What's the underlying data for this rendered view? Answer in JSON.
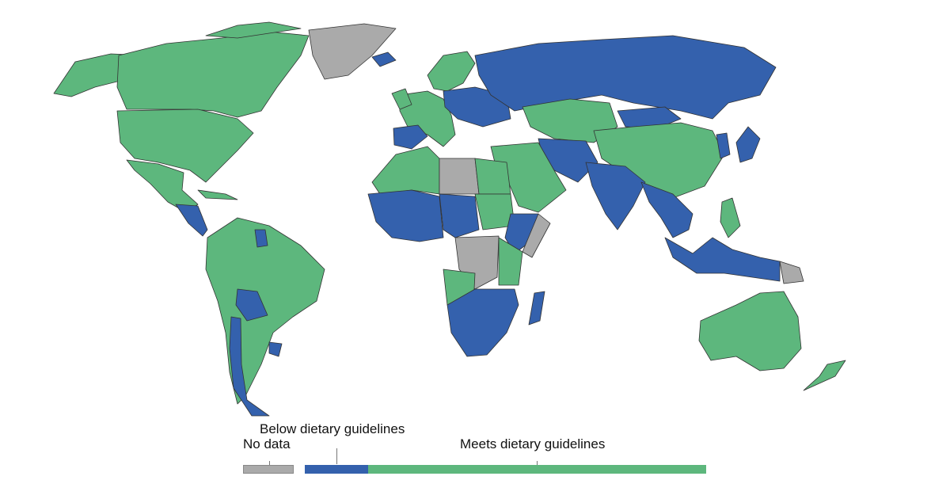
{
  "colors": {
    "below": "#3461ad",
    "meets": "#5db77d",
    "no_data": "#aaaaaa",
    "border": "#333333"
  },
  "legend": {
    "below_label": "Below dietary guidelines",
    "no_data_label": "No data",
    "meets_label": "Meets dietary guidelines"
  },
  "regions": {
    "canada": "meets",
    "usa": "meets",
    "mexico": "meets",
    "alaska": "meets",
    "greenland": "no_data",
    "central_america": "below",
    "cuba": "meets",
    "south_america": "meets",
    "bolivia": "below",
    "chile": "below",
    "uruguay": "below",
    "guyana": "below",
    "iceland": "below",
    "western_europe": "meets",
    "spain": "below",
    "eastern_europe": "below",
    "scandinavia": "meets",
    "russia": "below",
    "central_asia": "meets",
    "china": "meets",
    "mongolia": "below",
    "japan": "below",
    "korea": "below",
    "south_asia": "below",
    "india": "below",
    "southeast_asia": "below",
    "philippines": "meets",
    "indonesia": "below",
    "png_east": "no_data",
    "middle_east": "meets",
    "iran_afg": "below",
    "north_africa": "meets",
    "libya": "no_data",
    "west_africa": "below",
    "sahel": "below",
    "sudan": "meets",
    "somalia": "no_data",
    "ethiopia": "below",
    "central_africa": "no_data",
    "east_africa": "meets",
    "southern_africa": "below",
    "angola": "meets",
    "madagascar": "below",
    "australia": "meets",
    "new_zealand": "meets"
  }
}
